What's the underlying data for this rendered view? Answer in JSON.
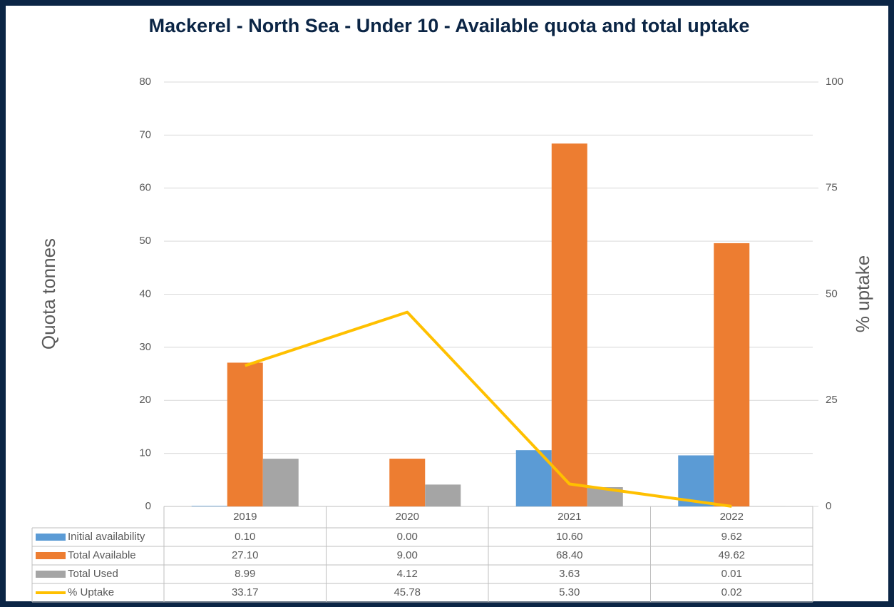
{
  "chart_data": {
    "type": "bar",
    "title": "Mackerel - North Sea - Under 10 - Available quota and total uptake",
    "y_label": "Quota tonnes",
    "y2_label": "% uptake",
    "categories": [
      "2019",
      "2020",
      "2021",
      "2022"
    ],
    "series": [
      {
        "name": "Initial availability",
        "color": "#5b9bd5",
        "type": "bar",
        "values": [
          0.1,
          0.0,
          10.6,
          9.62
        ],
        "value_labels": [
          "0.10",
          "0.00",
          "10.60",
          "9.62"
        ]
      },
      {
        "name": "Total Available",
        "color": "#ed7d31",
        "type": "bar",
        "values": [
          27.1,
          9.0,
          68.4,
          49.62
        ],
        "value_labels": [
          "27.10",
          "9.00",
          "68.40",
          "49.62"
        ]
      },
      {
        "name": "Total Used",
        "color": "#a5a5a5",
        "type": "bar",
        "values": [
          8.99,
          4.12,
          3.63,
          0.01
        ],
        "value_labels": [
          "8.99",
          "4.12",
          "3.63",
          "0.01"
        ]
      },
      {
        "name": "% Uptake",
        "color": "#ffc000",
        "type": "line",
        "axis": "y2",
        "values": [
          33.17,
          45.78,
          5.3,
          0.02
        ],
        "value_labels": [
          "33.17",
          "45.78",
          "5.30",
          "0.02"
        ]
      }
    ],
    "ylim": [
      0,
      80
    ],
    "yticks": [
      0,
      10,
      20,
      30,
      40,
      50,
      60,
      70,
      80
    ],
    "y2lim": [
      0,
      100
    ],
    "y2ticks": [
      0,
      25,
      50,
      75,
      100
    ],
    "grid": true
  }
}
